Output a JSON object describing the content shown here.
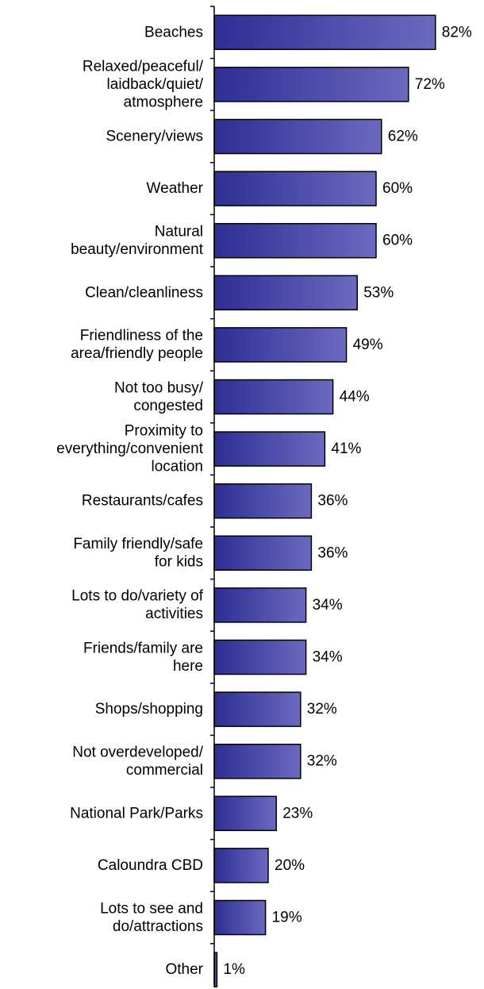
{
  "chart_data": {
    "type": "bar",
    "orientation": "horizontal",
    "title": "",
    "xlabel": "",
    "ylabel": "",
    "xlim": [
      0,
      100
    ],
    "grid": false,
    "legend": "none",
    "value_suffix": "%",
    "bar_color_start": "#2e2e94",
    "bar_color_end": "#6a6abf",
    "categories": [
      [
        "Beaches"
      ],
      [
        "Relaxed/peaceful/",
        "laidback/quiet/",
        "atmosphere"
      ],
      [
        "Scenery/views"
      ],
      [
        "Weather"
      ],
      [
        "Natural",
        "beauty/environment"
      ],
      [
        "Clean/cleanliness"
      ],
      [
        "Friendliness of the",
        "area/friendly people"
      ],
      [
        "Not too busy/",
        "congested"
      ],
      [
        "Proximity to",
        "everything/convenient",
        "location"
      ],
      [
        "Restaurants/cafes"
      ],
      [
        "Family friendly/safe",
        "for kids"
      ],
      [
        "Lots to do/variety of",
        "activities"
      ],
      [
        "Friends/family are",
        "here"
      ],
      [
        "Shops/shopping"
      ],
      [
        "Not overdeveloped/",
        "commercial"
      ],
      [
        "National Park/Parks"
      ],
      [
        "Caloundra CBD"
      ],
      [
        "Lots to see and",
        "do/attractions"
      ],
      [
        "Other"
      ]
    ],
    "values": [
      82,
      72,
      62,
      60,
      60,
      53,
      49,
      44,
      41,
      36,
      36,
      34,
      34,
      32,
      32,
      23,
      20,
      19,
      1
    ]
  }
}
